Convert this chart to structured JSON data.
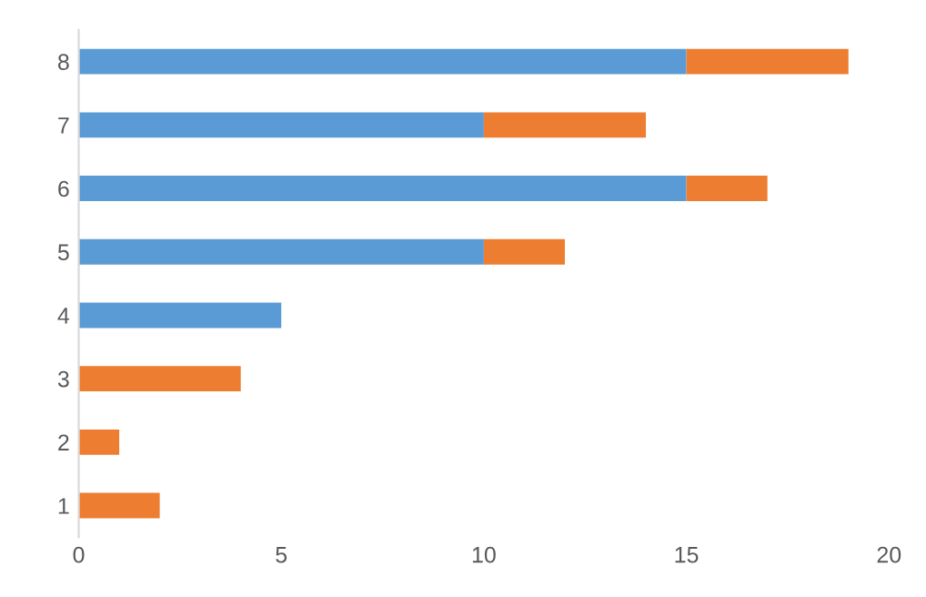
{
  "chart_data": {
    "type": "bar",
    "orientation": "horizontal",
    "stacked": true,
    "categories": [
      "8",
      "7",
      "6",
      "5",
      "4",
      "3",
      "2",
      "1"
    ],
    "series": [
      {
        "color": "#5b9bd5",
        "values": [
          15,
          10,
          15,
          10,
          5,
          0,
          0,
          0
        ]
      },
      {
        "color": "#ed7d31",
        "values": [
          4,
          4,
          2,
          2,
          0,
          4,
          1,
          2
        ]
      }
    ],
    "xlim": [
      0,
      20
    ],
    "xticks": [
      0,
      5,
      10,
      15,
      20
    ],
    "grid": false,
    "legend": false
  }
}
